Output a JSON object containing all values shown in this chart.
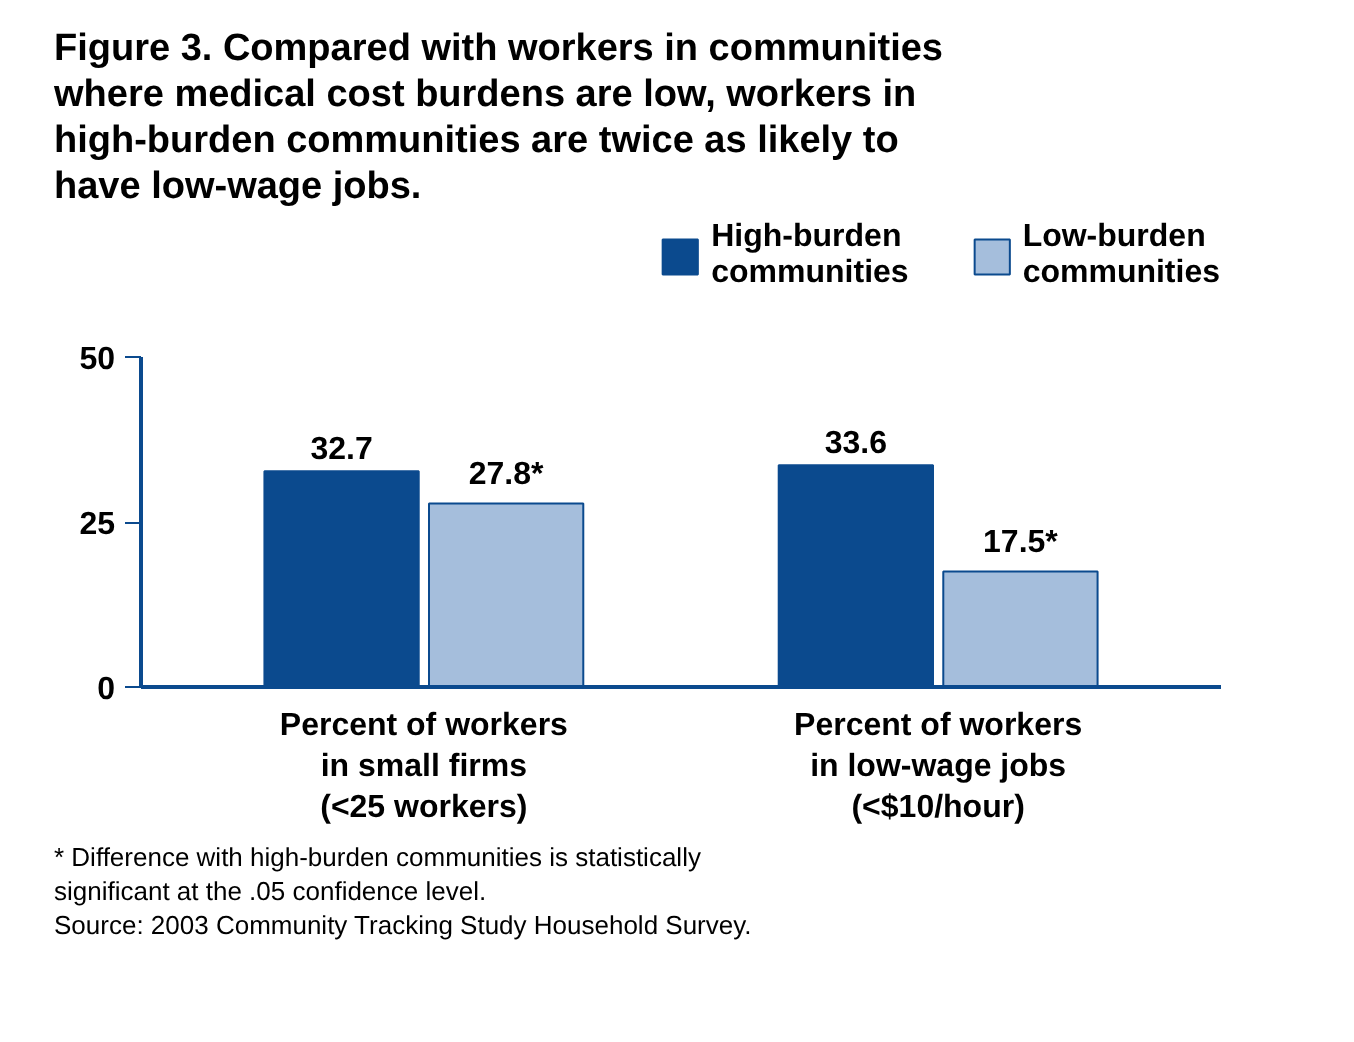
{
  "chart_data": {
    "type": "bar",
    "title": "Figure 3. Compared with workers in communities where medical cost burdens are low, workers in high-burden communities are twice as likely to have low-wage jobs.",
    "categories": [
      "Percent of workers in small firms (<25 workers)",
      "Percent of workers in low-wage jobs (<$10/hour)"
    ],
    "series": [
      {
        "name": "High-burden communities",
        "color": "#0b4a8e",
        "values": [
          32.7,
          33.6
        ],
        "value_labels": [
          "32.7",
          "33.6"
        ]
      },
      {
        "name": "Low-burden communities",
        "color": "#a5bedc",
        "values": [
          27.8,
          17.5
        ],
        "value_labels": [
          "27.8*",
          "17.5*"
        ]
      }
    ],
    "ylim": [
      0,
      50
    ],
    "yticks": [
      0,
      25,
      50
    ],
    "grid": false,
    "legend": "top right",
    "annotations": [
      "* Difference with high-burden communities is statistically significant at the .05 confidence level.",
      "Source: 2003 Community Tracking Study Household Survey."
    ]
  }
}
